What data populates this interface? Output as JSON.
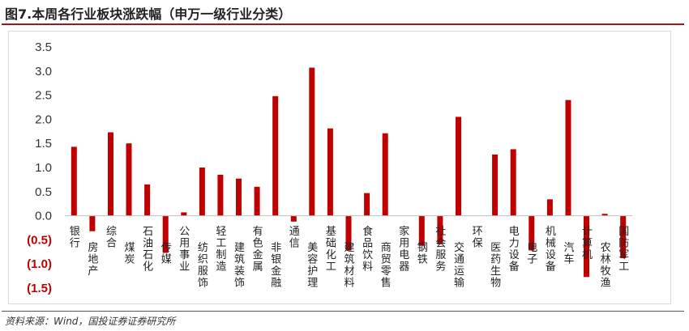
{
  "header": {
    "title": "图7.本周各行业板块涨跌幅（申万一级行业分类）"
  },
  "footer": {
    "source": "资料来源：Wind，国投证券证券研究所"
  },
  "colors": {
    "bar": "#c00000",
    "negative_label": "#c00000",
    "positive_label": "#333333",
    "accent_rule": "#9b1b1b"
  },
  "chart_data": {
    "type": "bar",
    "ylim": [
      -1.5,
      3.5
    ],
    "yticks": [
      {
        "value": 3.5,
        "label": "3.5"
      },
      {
        "value": 3.0,
        "label": "3.0"
      },
      {
        "value": 2.5,
        "label": "2.5"
      },
      {
        "value": 2.0,
        "label": "2.0"
      },
      {
        "value": 1.5,
        "label": "1.5"
      },
      {
        "value": 1.0,
        "label": "1.0"
      },
      {
        "value": 0.5,
        "label": "0.5"
      },
      {
        "value": 0.0,
        "label": "0.0"
      },
      {
        "value": -0.5,
        "label": "(0.5)"
      },
      {
        "value": -1.0,
        "label": "(1.0)"
      },
      {
        "value": -1.5,
        "label": "(1.5)"
      }
    ],
    "grid": false,
    "legend": "none",
    "categories": [
      "银行",
      "房地产",
      "综合",
      "煤炭",
      "石油石化",
      "传媒",
      "公用事业",
      "纺织服饰",
      "轻工制造",
      "建筑装饰",
      "有色金属",
      "非银金融",
      "通信",
      "美容护理",
      "基础化工",
      "建筑材料",
      "食品饮料",
      "商贸零售",
      "家用电器",
      "钢铁",
      "社会服务",
      "交通运输",
      "环保",
      "医药生物",
      "电力设备",
      "电子",
      "机械设备",
      "汽车",
      "计算机",
      "农林牧渔",
      "国防军工"
    ],
    "values": [
      1.43,
      -0.32,
      1.73,
      1.5,
      0.65,
      -0.77,
      0.07,
      1.0,
      0.85,
      0.77,
      0.6,
      2.48,
      -0.12,
      3.07,
      1.81,
      -0.72,
      0.47,
      1.71,
      0.0,
      -0.62,
      -0.59,
      2.05,
      0.0,
      1.27,
      1.38,
      -0.72,
      0.34,
      2.4,
      -1.27,
      0.04,
      -0.88
    ]
  }
}
